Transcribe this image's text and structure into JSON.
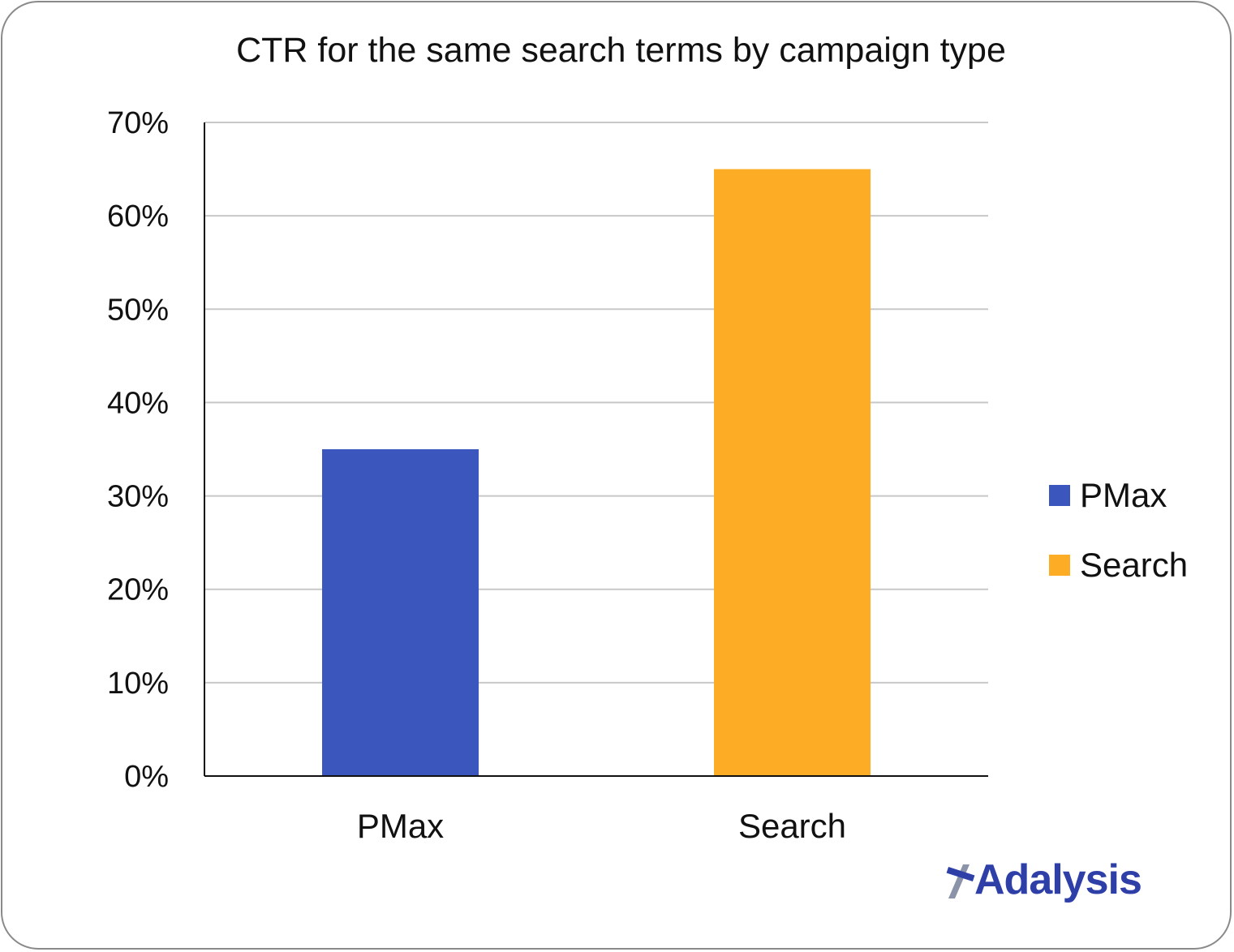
{
  "chart_data": {
    "type": "bar",
    "title": "CTR for the same search terms by campaign type",
    "categories": [
      "PMax",
      "Search"
    ],
    "values": [
      35,
      65
    ],
    "colors": [
      "#3b57bd",
      "#fdad25"
    ],
    "ylim": [
      0,
      70
    ],
    "yticks": [
      0,
      10,
      20,
      30,
      40,
      50,
      60,
      70
    ],
    "ytick_labels": [
      "0%",
      "10%",
      "20%",
      "30%",
      "40%",
      "50%",
      "60%",
      "70%"
    ],
    "grid": true,
    "legend": {
      "position": "right",
      "entries": [
        {
          "label": "PMax",
          "color": "#3b57bd"
        },
        {
          "label": "Search",
          "color": "#fdad25"
        }
      ]
    },
    "xlabel": "",
    "ylabel": ""
  },
  "branding": {
    "logo_text": "Adalysis",
    "logo_color": "#2e3fa8"
  }
}
